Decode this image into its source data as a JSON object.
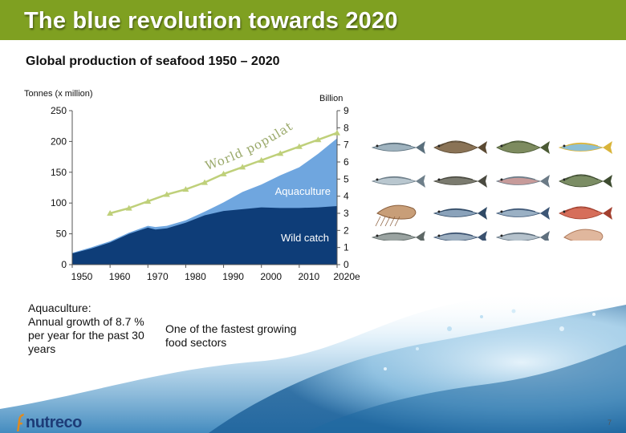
{
  "title": "The blue revolution towards 2020",
  "subtitle": "Global production of seafood 1950 – 2020",
  "colors": {
    "header_bg": "#7fa021",
    "wild_catch": "#0e3d78",
    "aquaculture": "#6fa6df",
    "population_line": "#bfd07a",
    "population_text": "#9aa96a"
  },
  "chart_data": {
    "type": "area",
    "title": "Global production of seafood 1950 – 2020",
    "ylabel_left": "Tonnes (x million)",
    "ylabel_right": "Billion",
    "x_ticks": [
      "1950",
      "1960",
      "1970",
      "1980",
      "1990",
      "2000",
      "2010",
      "2020e"
    ],
    "y_left_ticks": [
      "0",
      "50",
      "100",
      "150",
      "200",
      "250"
    ],
    "y_right_ticks": [
      "0",
      "1",
      "2",
      "3",
      "4",
      "5",
      "6",
      "7",
      "8",
      "9"
    ],
    "xlim": [
      1950,
      2020
    ],
    "ylim_left": [
      0,
      250
    ],
    "ylim_right": [
      0,
      9
    ],
    "series": [
      {
        "name": "Wild catch",
        "type": "area",
        "x": [
          1950,
          1955,
          1960,
          1965,
          1970,
          1972,
          1975,
          1980,
          1985,
          1990,
          1995,
          2000,
          2005,
          2010,
          2015,
          2020
        ],
        "values": [
          18,
          26,
          36,
          50,
          60,
          57,
          59,
          68,
          80,
          87,
          90,
          93,
          92,
          92,
          93,
          95
        ]
      },
      {
        "name": "Aquaculture",
        "type": "area_stacked_total",
        "x": [
          1950,
          1955,
          1960,
          1965,
          1970,
          1972,
          1975,
          1980,
          1985,
          1990,
          1995,
          2000,
          2005,
          2010,
          2015,
          2020
        ],
        "values": [
          19,
          28,
          38,
          52,
          63,
          61,
          63,
          72,
          86,
          101,
          118,
          130,
          145,
          158,
          180,
          205
        ]
      },
      {
        "name": "World population",
        "type": "line",
        "axis": "right",
        "x": [
          1960,
          1965,
          1970,
          1975,
          1980,
          1985,
          1990,
          1995,
          2000,
          2005,
          2010,
          2015,
          2020
        ],
        "values": [
          3.0,
          3.3,
          3.7,
          4.1,
          4.4,
          4.8,
          5.3,
          5.7,
          6.1,
          6.5,
          6.9,
          7.3,
          7.7
        ]
      }
    ],
    "annotations": {
      "aquaculture_label": "Aquaculture",
      "wild_label": "Wild catch",
      "population_label": "World population"
    }
  },
  "notes": {
    "aquaculture_heading": "Aquaculture:",
    "aquaculture_text": "Annual growth of 8.7 % per year for the past 30 years",
    "fastest_text": "One of the fastest growing food sectors"
  },
  "logo": {
    "text": "nutreco"
  },
  "page_number": "7",
  "fish_icons": [
    "herring-icon",
    "flatfish-icon",
    "grouper-icon",
    "mahi-icon",
    "seabass-icon",
    "catfish-icon",
    "trout-icon",
    "tilapia-icon",
    "shrimp-icon",
    "mackerel-icon",
    "tuna-icon",
    "red-snapper-icon",
    "carp-icon",
    "bonito-icon",
    "pollock-icon",
    "prawn-icon"
  ]
}
